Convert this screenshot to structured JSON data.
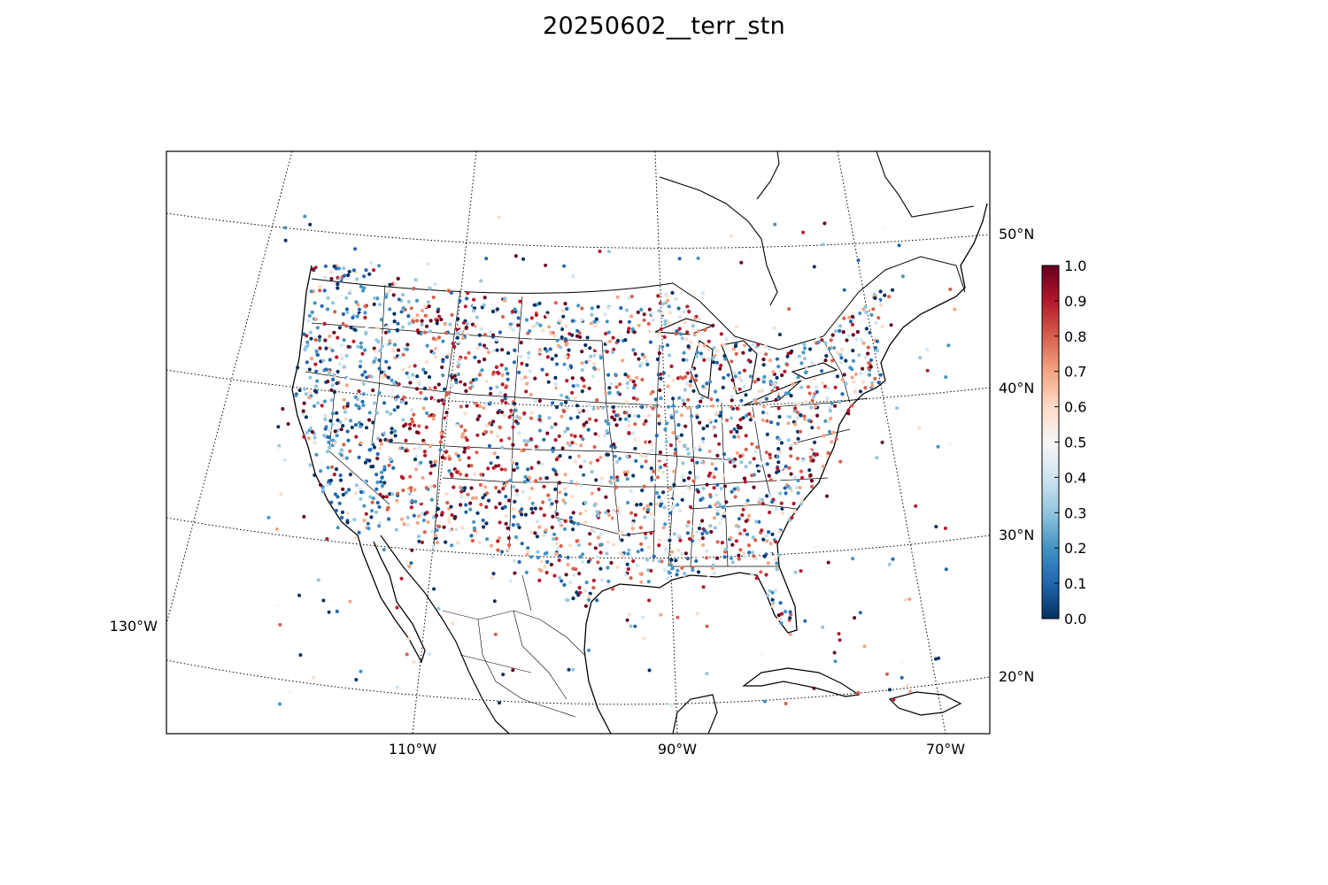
{
  "title": "20250602__terr_stn",
  "map": {
    "projection": "lambert-conformal",
    "region": "contiguous-united-states",
    "coastlines": true,
    "state_borders": true,
    "country_borders": true,
    "graticule": "dotted"
  },
  "latitude_labels": [
    "50°N",
    "40°N",
    "30°N",
    "20°N"
  ],
  "longitude_labels": [
    "130°W",
    "110°W",
    "90°W",
    "70°W"
  ],
  "colorbar": {
    "colormap": "RdBu_r",
    "min": 0.0,
    "max": 1.0,
    "ticks": [
      "0.0",
      "0.1",
      "0.2",
      "0.3",
      "0.4",
      "0.5",
      "0.6",
      "0.7",
      "0.8",
      "0.9",
      "1.0"
    ],
    "colors": {
      "0.0": "#053061",
      "0.1": "#2166ac",
      "0.2": "#4393c3",
      "0.3": "#92c5de",
      "0.4": "#d1e5f0",
      "0.5": "#f7f7f7",
      "0.6": "#fddbc7",
      "0.7": "#f4a582",
      "0.8": "#d6604d",
      "0.9": "#b2182b",
      "1.0": "#67001f"
    }
  }
}
